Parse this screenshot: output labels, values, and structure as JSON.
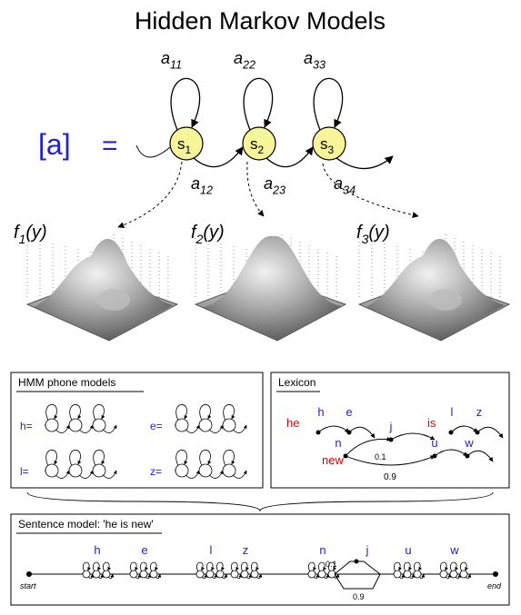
{
  "title": "Hidden Markov Models",
  "model": {
    "label": "[a]",
    "equals": "=",
    "states": [
      {
        "name": "s",
        "sub": "1"
      },
      {
        "name": "s",
        "sub": "2"
      },
      {
        "name": "s",
        "sub": "3"
      }
    ],
    "self_transitions": [
      {
        "name": "a",
        "sub": "11"
      },
      {
        "name": "a",
        "sub": "22"
      },
      {
        "name": "a",
        "sub": "33"
      }
    ],
    "forward_transitions": [
      {
        "name": "a",
        "sub": "12"
      },
      {
        "name": "a",
        "sub": "23"
      },
      {
        "name": "a",
        "sub": "34"
      }
    ]
  },
  "densities": [
    {
      "name": "f",
      "sub": "1",
      "arg": "(y)"
    },
    {
      "name": "f",
      "sub": "2",
      "arg": "(y)"
    },
    {
      "name": "f",
      "sub": "3",
      "arg": "(y)"
    }
  ],
  "phone_models": {
    "title": "HMM phone models",
    "models": [
      "h=",
      "e=",
      "l=",
      "z="
    ]
  },
  "lexicon": {
    "title": "Lexicon",
    "words": [
      {
        "word": "he",
        "phones": [
          "h",
          "e"
        ]
      },
      {
        "word": "is",
        "phones": [
          "l",
          "z"
        ]
      },
      {
        "word": "new",
        "phones": [
          "n",
          "j",
          "u",
          "w"
        ],
        "branch_probs": [
          "0.1",
          "0.9"
        ]
      }
    ]
  },
  "sentence": {
    "title": "Sentence model: 'he is new'",
    "phones": [
      "h",
      "e",
      "l",
      "z",
      "n",
      "j",
      "u",
      "w"
    ],
    "branch_probs": [
      "0.1",
      "0.9"
    ],
    "start": "start",
    "end": "end"
  }
}
